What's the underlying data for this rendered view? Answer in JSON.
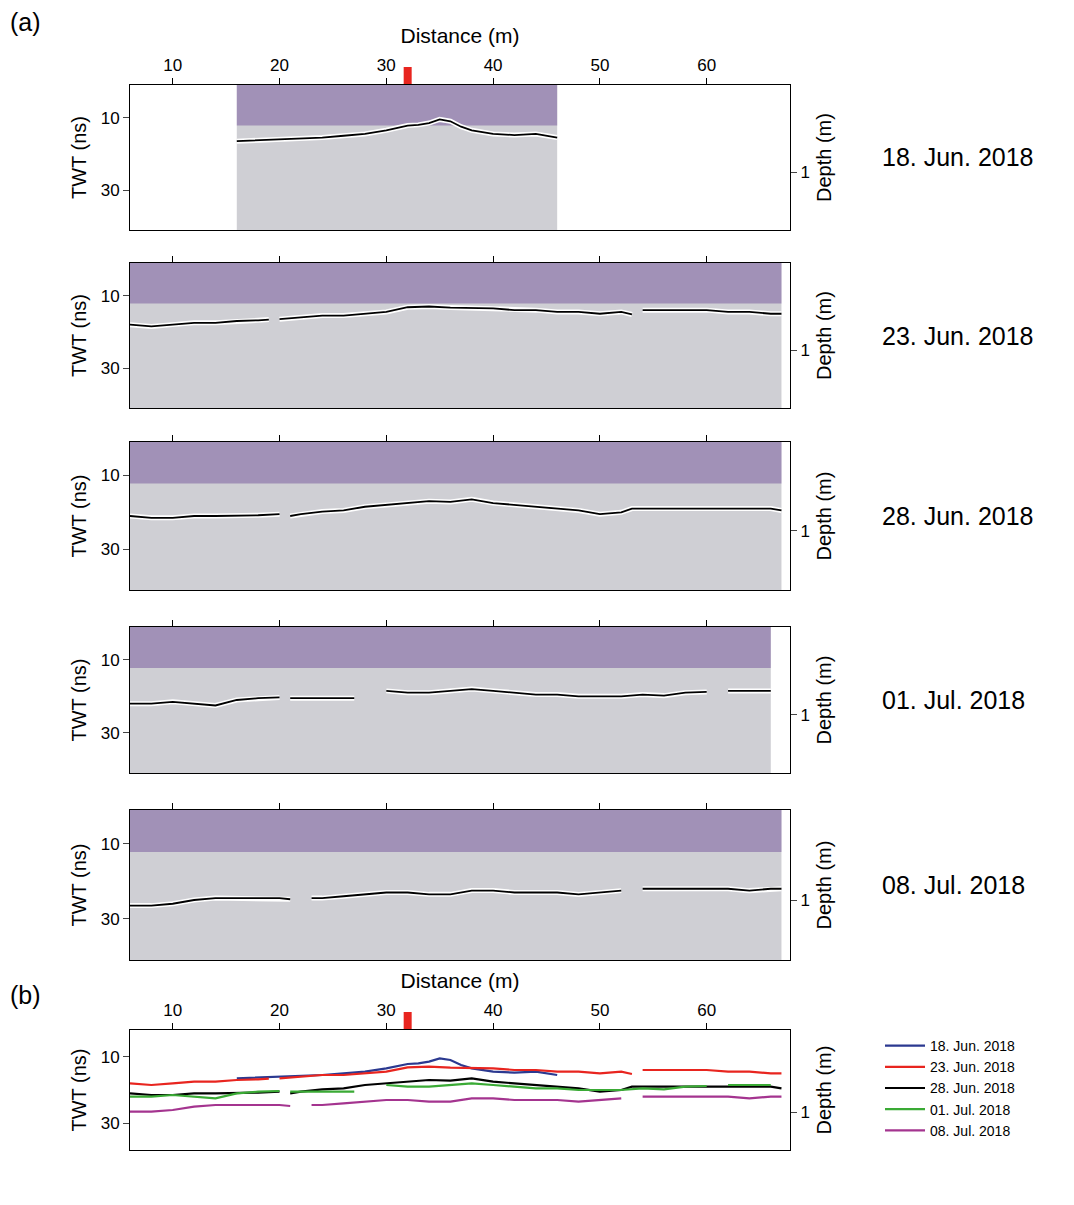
{
  "chart_data": [
    {
      "type": "line",
      "panel": "(a)",
      "label": "18. Jun. 2018",
      "xlabel": "Distance (m)",
      "ylabel": "TWT (ns)",
      "y2label": "Depth (m)",
      "xlim": [
        6,
        67.8
      ],
      "xticks": [
        10,
        20,
        30,
        40,
        50,
        60
      ],
      "ylim": [
        41,
        1
      ],
      "yticks": [
        10,
        30
      ],
      "y2lim": [
        1.64,
        0.04
      ],
      "y2ticks": [
        1
      ],
      "position_mark": {
        "x": 32,
        "color": "#e8251f"
      },
      "series": [
        {
          "color": "#000000",
          "x": [
            16,
            18,
            20,
            22,
            24,
            26,
            28,
            30,
            31,
            32,
            33,
            34,
            35,
            36,
            37,
            38,
            40,
            42,
            44,
            46
          ],
          "values": [
            16.5,
            16.3,
            16,
            15.8,
            15.5,
            15,
            14.5,
            13.5,
            12.8,
            12.2,
            12,
            11.5,
            10.5,
            11,
            12.5,
            13.5,
            14.5,
            14.8,
            14.5,
            15.5
          ]
        }
      ]
    },
    {
      "type": "line",
      "label": "23. Jun. 2018",
      "ylabel": "TWT (ns)",
      "y2label": "Depth (m)",
      "tick_labels": "y",
      "xlim": [
        6,
        67.8
      ],
      "xticks": [
        10,
        20,
        30,
        40,
        50,
        60
      ],
      "ylim": [
        41,
        1
      ],
      "yticks": [
        10,
        30
      ],
      "y2lim": [
        1.64,
        0.04
      ],
      "y2ticks": [
        1
      ],
      "series": [
        {
          "color": "#000000",
          "x": [
            6,
            8,
            10,
            12,
            14,
            16,
            18,
            19,
            19.5,
            20,
            22,
            24,
            26,
            28,
            30,
            32,
            34,
            36,
            38,
            40,
            42,
            44,
            46,
            48,
            50,
            52,
            53,
            53.5,
            54,
            56,
            58,
            60,
            62,
            64,
            66,
            67
          ],
          "values": [
            18,
            18.5,
            18,
            17.5,
            17.5,
            17,
            16.8,
            16.6,
            null,
            16.5,
            16,
            15.5,
            15.5,
            15,
            14.5,
            13.2,
            13,
            13.3,
            13.5,
            13.5,
            14,
            14,
            14.5,
            14.5,
            15,
            14.5,
            15.2,
            null,
            14,
            14,
            14,
            14,
            14.5,
            14.5,
            15,
            15
          ]
        }
      ]
    },
    {
      "type": "line",
      "label": "28. Jun. 2018",
      "ylabel": "TWT (ns)",
      "y2label": "Depth (m)",
      "tick_labels": "y",
      "xlim": [
        6,
        67.8
      ],
      "xticks": [
        10,
        20,
        30,
        40,
        50,
        60
      ],
      "ylim": [
        41,
        1
      ],
      "yticks": [
        10,
        30
      ],
      "y2lim": [
        1.64,
        0.04
      ],
      "y2ticks": [
        1
      ],
      "series": [
        {
          "color": "#000000",
          "x": [
            6,
            8,
            10,
            12,
            14,
            16,
            18,
            20,
            20.5,
            21,
            22,
            24,
            26,
            28,
            30,
            32,
            34,
            36,
            38,
            40,
            42,
            44,
            46,
            48,
            50,
            52,
            53,
            54,
            56,
            58,
            60,
            62,
            64,
            66,
            67
          ],
          "values": [
            21,
            21.5,
            21.5,
            21,
            21,
            21,
            20.8,
            20.5,
            null,
            21,
            20.5,
            19.8,
            19.5,
            18.5,
            18,
            17.5,
            17,
            17.2,
            16.5,
            17.5,
            18,
            18.5,
            19,
            19.5,
            20.5,
            20,
            19,
            19,
            19,
            19,
            18.8,
            18.8,
            19,
            19,
            19.5
          ]
        }
      ]
    },
    {
      "type": "line",
      "label": "01. Jul. 2018",
      "ylabel": "TWT (ns)",
      "y2label": "Depth (m)",
      "tick_labels": "y",
      "xlim": [
        6,
        67.8
      ],
      "xticks": [
        10,
        20,
        30,
        40,
        50,
        60
      ],
      "ylim": [
        41,
        1
      ],
      "yticks": [
        10,
        30
      ],
      "y2lim": [
        1.64,
        0.04
      ],
      "y2ticks": [
        1
      ],
      "series": [
        {
          "color": "#000000",
          "x": [
            6,
            8,
            10,
            12,
            14,
            16,
            18,
            20,
            20.5,
            21,
            23,
            25,
            27,
            28,
            30,
            32,
            34,
            36,
            38,
            40,
            42,
            44,
            46,
            48,
            50,
            52,
            54,
            56,
            58,
            60,
            61,
            62,
            64,
            66
          ],
          "values": [
            22,
            22,
            21.5,
            22,
            22.5,
            21,
            20.5,
            20.3,
            null,
            20.5,
            20.5,
            20.5,
            20.5,
            null,
            18.5,
            19,
            19,
            18.5,
            18,
            18.5,
            19,
            19.5,
            19.5,
            20,
            20,
            20,
            19.5,
            19.8,
            19,
            18.8,
            null,
            18.5,
            18.5,
            18.5
          ]
        }
      ]
    },
    {
      "type": "line",
      "label": "08. Jul. 2018",
      "ylabel": "TWT (ns)",
      "y2label": "Depth (m)",
      "tick_labels": "y",
      "xlim": [
        6,
        67.8
      ],
      "xticks": [
        10,
        20,
        30,
        40,
        50,
        60
      ],
      "ylim": [
        41,
        1
      ],
      "yticks": [
        10,
        30
      ],
      "y2lim": [
        1.64,
        0.04
      ],
      "y2ticks": [
        1
      ],
      "series": [
        {
          "color": "#000000",
          "x": [
            6,
            8,
            10,
            12,
            14,
            16,
            18,
            20,
            21,
            22,
            23,
            24,
            26,
            28,
            30,
            32,
            34,
            36,
            38,
            40,
            42,
            44,
            46,
            48,
            50,
            52,
            53,
            54,
            56,
            58,
            60,
            62,
            64,
            66,
            67
          ],
          "values": [
            26.5,
            26.5,
            26,
            25,
            24.5,
            24.5,
            24.5,
            24.5,
            24.8,
            null,
            24.5,
            24.5,
            24,
            23.5,
            23,
            23,
            23.5,
            23.5,
            22.5,
            22.5,
            23,
            23,
            23,
            23.5,
            23,
            22.5,
            null,
            22,
            22,
            22,
            22,
            22,
            22.5,
            22,
            22
          ]
        }
      ]
    },
    {
      "type": "line",
      "panel": "(b)",
      "xlabel": "Distance (m)",
      "ylabel": "TWT (ns)",
      "y2label": "Depth (m)",
      "legend": "right",
      "xlim": [
        6,
        67.8
      ],
      "xticks": [
        10,
        20,
        30,
        40,
        50,
        60
      ],
      "ylim": [
        38,
        2
      ],
      "yticks": [
        10,
        30
      ],
      "y2lim": [
        1.42,
        0.075
      ],
      "y2ticks": [
        1
      ],
      "position_mark": {
        "x": 32,
        "color": "#e8251f"
      },
      "series": [
        {
          "name": "18. Jun. 2018",
          "color": "#2b3990",
          "x": [
            16,
            18,
            20,
            22,
            24,
            26,
            28,
            30,
            31,
            32,
            33,
            34,
            35,
            36,
            37,
            38,
            40,
            42,
            44,
            46
          ],
          "values": [
            16.5,
            16.3,
            16,
            15.8,
            15.5,
            15,
            14.5,
            13.5,
            12.8,
            12.2,
            12,
            11.5,
            10.5,
            11,
            12.5,
            13.5,
            14.5,
            14.8,
            14.5,
            15.5
          ]
        },
        {
          "name": "23. Jun. 2018",
          "color": "#e8251f",
          "x": [
            6,
            8,
            10,
            12,
            14,
            16,
            18,
            19,
            19.5,
            20,
            22,
            24,
            26,
            28,
            30,
            32,
            34,
            36,
            38,
            40,
            42,
            44,
            46,
            48,
            50,
            52,
            53,
            53.5,
            54,
            56,
            58,
            60,
            62,
            64,
            66,
            67
          ],
          "values": [
            18,
            18.5,
            18,
            17.5,
            17.5,
            17,
            16.8,
            16.6,
            null,
            16.5,
            16,
            15.5,
            15.5,
            15,
            14.5,
            13.2,
            13,
            13.3,
            13.5,
            13.5,
            14,
            14,
            14.5,
            14.5,
            15,
            14.5,
            15.2,
            null,
            14,
            14,
            14,
            14,
            14.5,
            14.5,
            15,
            15
          ]
        },
        {
          "name": "28. Jun. 2018",
          "color": "#000000",
          "x": [
            6,
            8,
            10,
            12,
            14,
            16,
            18,
            20,
            20.5,
            21,
            22,
            24,
            26,
            28,
            30,
            32,
            34,
            36,
            38,
            40,
            42,
            44,
            46,
            48,
            50,
            52,
            53,
            54,
            56,
            58,
            60,
            62,
            64,
            66,
            67
          ],
          "values": [
            21,
            21.5,
            21.5,
            21,
            21,
            21,
            20.8,
            20.5,
            null,
            21,
            20.5,
            19.8,
            19.5,
            18.5,
            18,
            17.5,
            17,
            17.2,
            16.5,
            17.5,
            18,
            18.5,
            19,
            19.5,
            20.5,
            20,
            19,
            19,
            19,
            19,
            18.8,
            18.8,
            19,
            19,
            19.5
          ]
        },
        {
          "name": "01. Jul. 2018",
          "color": "#3aaa35",
          "x": [
            6,
            8,
            10,
            12,
            14,
            16,
            18,
            20,
            20.5,
            21,
            23,
            25,
            27,
            28,
            30,
            32,
            34,
            36,
            38,
            40,
            42,
            44,
            46,
            48,
            50,
            52,
            54,
            56,
            58,
            60,
            61,
            62,
            64,
            66
          ],
          "values": [
            22,
            22,
            21.5,
            22,
            22.5,
            21,
            20.5,
            20.3,
            null,
            20.5,
            20.5,
            20.5,
            20.5,
            null,
            18.5,
            19,
            19,
            18.5,
            18,
            18.5,
            19,
            19.5,
            19.5,
            20,
            20,
            20,
            19.5,
            19.8,
            19,
            18.8,
            null,
            18.5,
            18.5,
            18.5
          ]
        },
        {
          "name": "08. Jul. 2018",
          "color": "#a4348f",
          "x": [
            6,
            8,
            10,
            12,
            14,
            16,
            18,
            20,
            21,
            22,
            23,
            24,
            26,
            28,
            30,
            32,
            34,
            36,
            38,
            40,
            42,
            44,
            46,
            48,
            50,
            52,
            53,
            54,
            56,
            58,
            60,
            62,
            64,
            66,
            67
          ],
          "values": [
            26.5,
            26.5,
            26,
            25,
            24.5,
            24.5,
            24.5,
            24.5,
            24.8,
            null,
            24.5,
            24.5,
            24,
            23.5,
            23,
            23,
            23.5,
            23.5,
            22.5,
            22.5,
            23,
            23,
            23,
            23.5,
            23,
            22.5,
            null,
            22,
            22,
            22,
            22,
            22,
            22.5,
            22,
            22
          ]
        }
      ]
    }
  ]
}
